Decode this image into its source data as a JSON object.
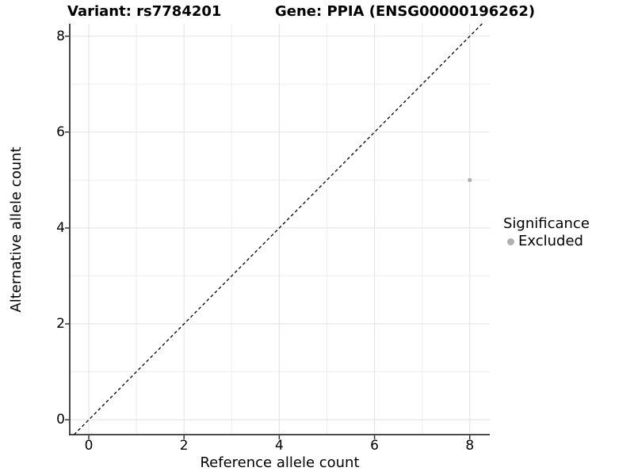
{
  "header": {
    "variant_title": "Variant: rs7784201",
    "gene_title": "Gene: PPIA (ENSG00000196262)"
  },
  "legend": {
    "title": "Significance",
    "items": [
      {
        "label": "Excluded",
        "color": "#b0b0b0",
        "marker": "circle"
      }
    ]
  },
  "chart_data": {
    "type": "scatter",
    "title_left": "Variant: rs7784201",
    "title_right": "Gene: PPIA (ENSG00000196262)",
    "xlabel": "Reference allele count",
    "ylabel": "Alternative allele count",
    "x_ticks": [
      0,
      2,
      4,
      6,
      8
    ],
    "y_ticks": [
      0,
      2,
      4,
      6,
      8
    ],
    "x_minor": [
      1,
      3,
      5,
      7
    ],
    "y_minor": [
      1,
      3,
      5,
      7
    ],
    "xlim": [
      -0.4,
      8.42
    ],
    "ylim": [
      -0.31,
      8.26
    ],
    "grid": true,
    "legend_position": "right",
    "legend_title": "Significance",
    "series": [
      {
        "name": "Excluded",
        "color": "#b0b0b0",
        "marker": "circle",
        "points": [
          {
            "x": 8,
            "y": 5
          }
        ]
      }
    ],
    "reference_line": {
      "slope": 1,
      "intercept": 0,
      "style": "dashed",
      "color": "#000000"
    }
  },
  "colors": {
    "background": "#ffffff",
    "grid_major": "#e3e3e3",
    "grid_minor": "#eeeeee",
    "axis": "#333333",
    "text": "#000000",
    "excluded_point": "#b0b0b0"
  }
}
